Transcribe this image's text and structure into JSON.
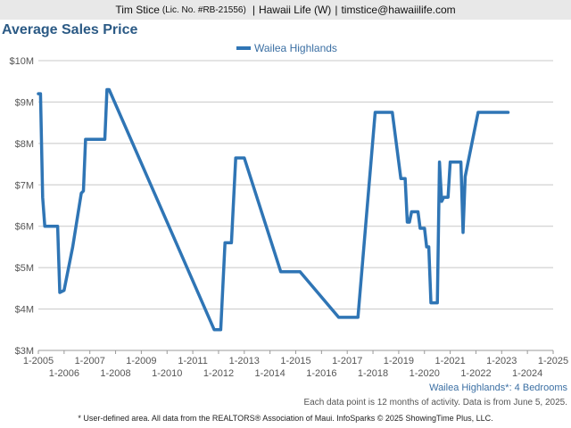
{
  "header": {
    "agent_name": "Tim Stice",
    "license": "(Lic. No. #RB-21556)",
    "brokerage": "Hawaii Life (W)",
    "email": "timstice@hawaiilife.com",
    "separator": "|"
  },
  "chart_title": "Average Sales Price",
  "subtitle": "Wailea Highlands*: 4 Bedrooms",
  "note": "Each data point is 12 months of activity. Data is from June 5, 2025.",
  "footer": "* User-defined area. All data from the REALTORS® Association of Maui. InfoSparks © 2025 ShowingTime Plus, LLC.",
  "chart_data": {
    "type": "line",
    "title": "Average Sales Price",
    "legend_position": "top-center",
    "grid": true,
    "ylim": [
      3000000,
      10000000
    ],
    "xlim": [
      "2005-01",
      "2025-01"
    ],
    "y_ticks": [
      {
        "value": 3000000,
        "label": "$3M"
      },
      {
        "value": 4000000,
        "label": "$4M"
      },
      {
        "value": 5000000,
        "label": "$5M"
      },
      {
        "value": 6000000,
        "label": "$6M"
      },
      {
        "value": 7000000,
        "label": "$7M"
      },
      {
        "value": 8000000,
        "label": "$8M"
      },
      {
        "value": 9000000,
        "label": "$9M"
      },
      {
        "value": 10000000,
        "label": "$10M"
      }
    ],
    "x_ticks": [
      "1-2005",
      "1-2006",
      "1-2007",
      "1-2008",
      "1-2009",
      "1-2010",
      "1-2011",
      "1-2012",
      "1-2013",
      "1-2014",
      "1-2015",
      "1-2016",
      "1-2017",
      "1-2018",
      "1-2019",
      "1-2020",
      "1-2021",
      "1-2022",
      "1-2023",
      "1-2024",
      "1-2025"
    ],
    "series": [
      {
        "name": "Wailea Highlands",
        "color": "#2f75b5",
        "points": [
          [
            "2005-01",
            9200000
          ],
          [
            "2005-02",
            9200000
          ],
          [
            "2005-03",
            6700000
          ],
          [
            "2005-04",
            6000000
          ],
          [
            "2005-07",
            6000000
          ],
          [
            "2005-10",
            6000000
          ],
          [
            "2005-11",
            4400000
          ],
          [
            "2006-01",
            4450000
          ],
          [
            "2006-05",
            5500000
          ],
          [
            "2006-09",
            6800000
          ],
          [
            "2006-10",
            6850000
          ],
          [
            "2006-11",
            8100000
          ],
          [
            "2007-03",
            8100000
          ],
          [
            "2007-08",
            8100000
          ],
          [
            "2007-09",
            9300000
          ],
          [
            "2007-10",
            9300000
          ],
          [
            "2011-11",
            3500000
          ],
          [
            "2012-02",
            3500000
          ],
          [
            "2012-04",
            5600000
          ],
          [
            "2012-07",
            5600000
          ],
          [
            "2012-09",
            7650000
          ],
          [
            "2013-01",
            7650000
          ],
          [
            "2014-06",
            4900000
          ],
          [
            "2015-03",
            4900000
          ],
          [
            "2016-09",
            3800000
          ],
          [
            "2017-06",
            3800000
          ],
          [
            "2018-02",
            8750000
          ],
          [
            "2018-10",
            8750000
          ],
          [
            "2019-02",
            7150000
          ],
          [
            "2019-04",
            7150000
          ],
          [
            "2019-05",
            6100000
          ],
          [
            "2019-06",
            6100000
          ],
          [
            "2019-07",
            6350000
          ],
          [
            "2019-10",
            6350000
          ],
          [
            "2019-11",
            5950000
          ],
          [
            "2020-01",
            5950000
          ],
          [
            "2020-02",
            5500000
          ],
          [
            "2020-03",
            5500000
          ],
          [
            "2020-04",
            4150000
          ],
          [
            "2020-07",
            4150000
          ],
          [
            "2020-08",
            7550000
          ],
          [
            "2020-09",
            6600000
          ],
          [
            "2020-10",
            6700000
          ],
          [
            "2020-12",
            6700000
          ],
          [
            "2021-01",
            7550000
          ],
          [
            "2021-06",
            7550000
          ],
          [
            "2021-07",
            5850000
          ],
          [
            "2021-08",
            7200000
          ],
          [
            "2022-02",
            8750000
          ],
          [
            "2022-08",
            8750000
          ],
          [
            "2023-04",
            8750000
          ]
        ]
      }
    ]
  }
}
